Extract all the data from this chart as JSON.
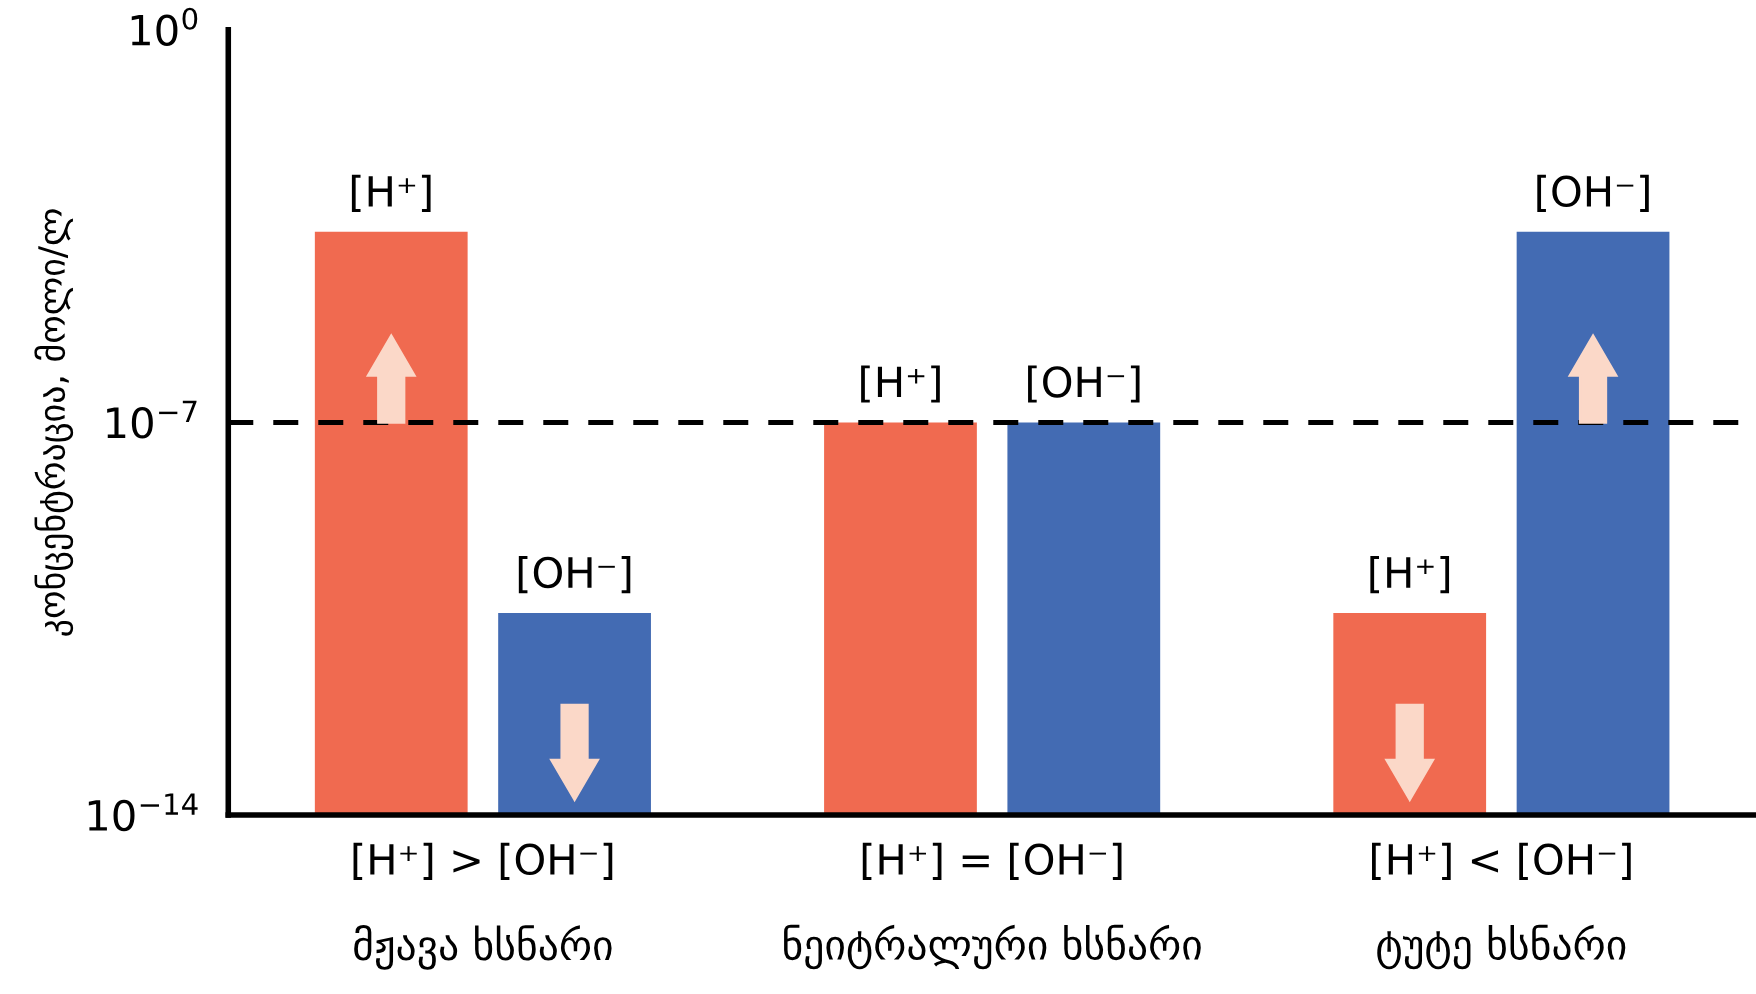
{
  "chart_data": {
    "type": "bar",
    "categories": [
      "[H⁺] > [OH⁻]\nმჟავა ხსნარი",
      "[H⁺] = [OH⁻]\nნეიტრალური ხსნარი",
      "[H⁺] < [OH⁻]\nტუტე ხსნარი"
    ],
    "series": [
      {
        "name": "[H⁺]",
        "color": "#f06a50",
        "values": [
          0.00025,
          1e-07,
          4e-11
        ]
      },
      {
        "name": "[OH⁻]",
        "color": "#436bb3",
        "values": [
          4e-11,
          1e-07,
          0.00025
        ]
      }
    ],
    "ylabel": "კონცენტრაცია, მოლი/ლ",
    "log": true,
    "ylim": [
      1e-14,
      1
    ],
    "yticks": [
      {
        "value": 1,
        "label": "10$^{0}$"
      },
      {
        "value": 1e-07,
        "label": "10$^{−7}$"
      },
      {
        "value": 1e-14,
        "label": "10$^{−14}$"
      }
    ],
    "ref_lines": [
      {
        "axis": "y",
        "value": 1e-07,
        "color": "#000000",
        "line_style": "dashed"
      }
    ],
    "grid": false,
    "legend": false
  }
}
